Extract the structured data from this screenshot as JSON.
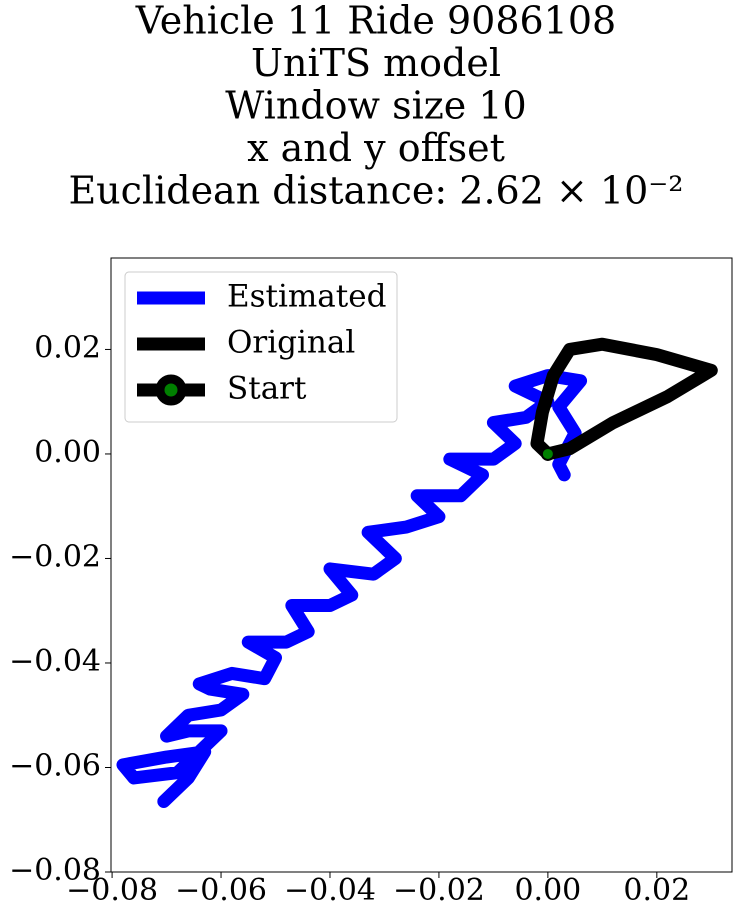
{
  "chart_data": {
    "type": "line",
    "title": [
      "Vehicle 11 Ride 9086108",
      "UniTS model",
      "Window size 10",
      "x and y offset",
      "Euclidean distance: 2.62 × 10⁻²"
    ],
    "series": [
      {
        "name": "Estimated",
        "color": "#0000ff",
        "x": [
          -0.0705,
          -0.066,
          -0.063,
          -0.07,
          -0.078,
          -0.076,
          -0.068,
          -0.064,
          -0.06,
          -0.066,
          -0.07,
          -0.066,
          -0.06,
          -0.056,
          -0.062,
          -0.064,
          -0.058,
          -0.052,
          -0.05,
          -0.055,
          -0.048,
          -0.044,
          -0.047,
          -0.04,
          -0.036,
          -0.04,
          -0.032,
          -0.028,
          -0.033,
          -0.026,
          -0.02,
          -0.024,
          -0.016,
          -0.012,
          -0.018,
          -0.01,
          -0.006,
          -0.01,
          -0.004,
          0.0,
          -0.006,
          0.0,
          0.006,
          0.002,
          0.005,
          0.002,
          0.003
        ],
        "values": [
          -0.0665,
          -0.062,
          -0.057,
          -0.058,
          -0.0595,
          -0.062,
          -0.061,
          -0.057,
          -0.053,
          -0.053,
          -0.054,
          -0.05,
          -0.049,
          -0.046,
          -0.045,
          -0.044,
          -0.042,
          -0.043,
          -0.039,
          -0.036,
          -0.036,
          -0.034,
          -0.029,
          -0.029,
          -0.027,
          -0.022,
          -0.023,
          -0.02,
          -0.015,
          -0.014,
          -0.012,
          -0.008,
          -0.008,
          -0.004,
          -0.001,
          -0.001,
          0.002,
          0.006,
          0.007,
          0.01,
          0.013,
          0.015,
          0.014,
          0.009,
          0.004,
          -0.002,
          -0.004
        ]
      },
      {
        "name": "Original",
        "color": "#000000",
        "x": [
          0,
          -0.002,
          -0.001,
          0.001,
          0.004,
          0.01,
          0.02,
          0.03,
          0.022,
          0.012,
          0.004,
          0
        ],
        "values": [
          0,
          0.002,
          0.008,
          0.015,
          0.02,
          0.021,
          0.019,
          0.016,
          0.011,
          0.006,
          0.001,
          0
        ]
      },
      {
        "name": "Start",
        "color": "#000000",
        "marker_color": "#008000",
        "x": [
          0
        ],
        "values": [
          0
        ]
      }
    ],
    "xlim": [
      -0.0802,
      0.0338
    ],
    "ylim": [
      -0.08,
      0.0375
    ],
    "xticks": [
      {
        "value": -0.08,
        "label": "−0.08"
      },
      {
        "value": -0.06,
        "label": "−0.06"
      },
      {
        "value": -0.04,
        "label": "−0.04"
      },
      {
        "value": -0.02,
        "label": "−0.02"
      },
      {
        "value": 0,
        "label": "0.00"
      },
      0.02
    ],
    "yticks": [
      {
        "value": -0.08,
        "label": "−0.08"
      },
      {
        "value": -0.06,
        "label": "−0.06"
      },
      {
        "value": -0.04,
        "label": "−0.04"
      },
      {
        "value": -0.02,
        "label": "−0.02"
      },
      {
        "value": 0,
        "label": "0.00"
      },
      0.02
    ],
    "legend": "upper left"
  }
}
